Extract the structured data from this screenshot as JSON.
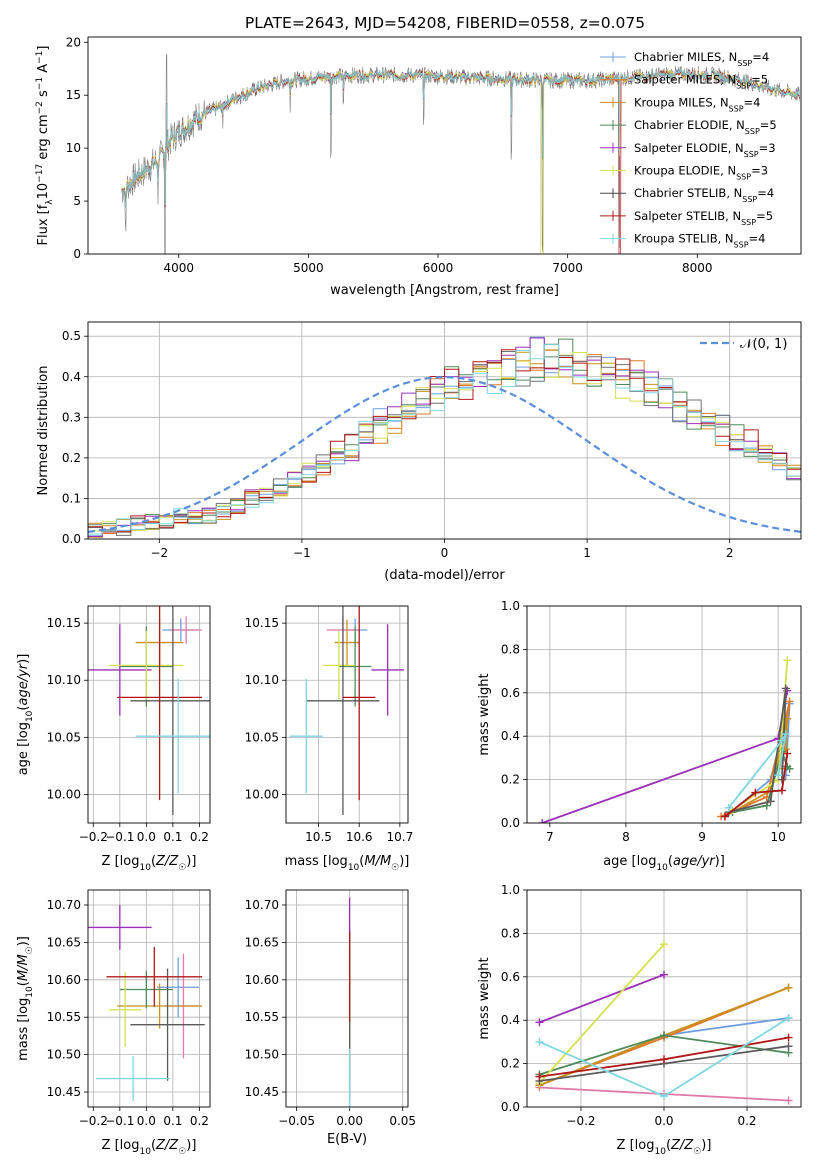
{
  "series_names": [
    "Chabrier MILES",
    "Salpeter MILES",
    "Kroupa MILES",
    "Chabrier ELODIE",
    "Salpeter ELODIE",
    "Kroupa ELODIE",
    "Chabrier STELIB",
    "Salpeter STELIB",
    "Kroupa STELIB"
  ],
  "colors": [
    "#6f9fe0",
    "#e07a2a",
    "#c8901c",
    "#4f8a5c",
    "#9b30b8",
    "#d4e050",
    "#4a4a4a",
    "#b01818",
    "#7fd6e0"
  ],
  "chart_data": [
    {
      "id": "spectrum",
      "type": "line",
      "title": "PLATE=2643, MJD=54208, FIBERID=0558, z=0.075",
      "xlabel": "wavelength [Angstrom, rest frame]",
      "ylabel": "Flux [f_λ 10^-17 erg cm^-2 s^-1 A^-1]",
      "xlim": [
        3300,
        8800
      ],
      "ylim": [
        0,
        20.5
      ],
      "xticks": [
        4000,
        5000,
        6000,
        7000,
        8000
      ],
      "yticks": [
        0,
        5,
        10,
        15,
        20
      ],
      "grid": false,
      "legend_location": "top-right",
      "legend": [
        {
          "label": "Chabrier MILES, N",
          "sub": "SSP",
          "suffix": "=4"
        },
        {
          "label": "Salpeter MILES, N",
          "sub": "SSP",
          "suffix": "=5"
        },
        {
          "label": "Kroupa MILES, N",
          "sub": "SSP",
          "suffix": "=4"
        },
        {
          "label": "Chabrier ELODIE, N",
          "sub": "SSP",
          "suffix": "=5"
        },
        {
          "label": "Salpeter ELODIE, N",
          "sub": "SSP",
          "suffix": "=3"
        },
        {
          "label": "Kroupa ELODIE, N",
          "sub": "SSP",
          "suffix": "=3"
        },
        {
          "label": "Chabrier STELIB, N",
          "sub": "SSP",
          "suffix": "=4"
        },
        {
          "label": "Salpeter STELIB, N",
          "sub": "SSP",
          "suffix": "=5"
        },
        {
          "label": "Kroupa STELIB, N",
          "sub": "SSP",
          "suffix": "=4"
        }
      ],
      "continuum": [
        [
          3560,
          6
        ],
        [
          3650,
          7
        ],
        [
          3750,
          8
        ],
        [
          3850,
          9
        ],
        [
          3950,
          11
        ],
        [
          4050,
          12
        ],
        [
          4150,
          13
        ],
        [
          4300,
          13.8
        ],
        [
          4450,
          14.8
        ],
        [
          4600,
          15.6
        ],
        [
          4800,
          16.3
        ],
        [
          5000,
          16.6
        ],
        [
          5200,
          16.8
        ],
        [
          5400,
          16.9
        ],
        [
          5600,
          16.9
        ],
        [
          5800,
          16.9
        ],
        [
          6000,
          16.8
        ],
        [
          6200,
          16.7
        ],
        [
          6400,
          16.6
        ],
        [
          6600,
          16.5
        ],
        [
          6800,
          16.4
        ],
        [
          7000,
          16.4
        ],
        [
          7200,
          16.4
        ],
        [
          7400,
          16.6
        ],
        [
          7600,
          16.8
        ],
        [
          7800,
          17
        ],
        [
          8000,
          17
        ],
        [
          8200,
          16.8
        ],
        [
          8400,
          16.2
        ],
        [
          8600,
          15.5
        ],
        [
          8800,
          15
        ]
      ],
      "spikes": [
        [
          3590,
          -4.5
        ],
        [
          3840,
          -5
        ],
        [
          3895,
          -11
        ],
        [
          3905,
          8
        ],
        [
          5175,
          -7
        ],
        [
          5890,
          -4
        ],
        [
          6565,
          -7
        ],
        [
          6805,
          -16
        ],
        [
          7400,
          -16
        ],
        [
          4340,
          -3
        ],
        [
          4860,
          -3
        ],
        [
          5270,
          -3
        ]
      ]
    },
    {
      "id": "residuals",
      "type": "histogram",
      "xlabel": "(data-model)/error",
      "ylabel": "Normed distribution",
      "xlim": [
        -2.5,
        2.5
      ],
      "ylim": [
        0,
        0.535
      ],
      "xticks": [
        -2,
        -1,
        0,
        1,
        2
      ],
      "yticks": [
        0.0,
        0.1,
        0.2,
        0.3,
        0.4,
        0.5
      ],
      "grid": true,
      "legend_location": "top-right",
      "legend": [
        {
          "label": "𝒩(0, 1)",
          "style": "dashed"
        }
      ],
      "bin_width": 0.1,
      "bin_start": -2.5,
      "shape_values": [
        0.02,
        0.025,
        0.03,
        0.035,
        0.04,
        0.045,
        0.05,
        0.055,
        0.06,
        0.07,
        0.08,
        0.095,
        0.11,
        0.13,
        0.15,
        0.17,
        0.19,
        0.21,
        0.23,
        0.26,
        0.28,
        0.3,
        0.32,
        0.34,
        0.36,
        0.375,
        0.39,
        0.4,
        0.41,
        0.42,
        0.43,
        0.44,
        0.44,
        0.44,
        0.43,
        0.42,
        0.41,
        0.4,
        0.39,
        0.37,
        0.35,
        0.33,
        0.31,
        0.29,
        0.27,
        0.25,
        0.23,
        0.21,
        0.19,
        0.17
      ],
      "normal_curve": {
        "mean": 0,
        "sigma": 1
      }
    },
    {
      "id": "age-vs-Z",
      "type": "scatter",
      "xlabel": "Z [log10(Z/Z☉)]",
      "ylabel": "age  [log10(age/yr)]",
      "xlim": [
        -0.22,
        0.24
      ],
      "ylim": [
        9.975,
        10.165
      ],
      "xticks": [
        -0.2,
        -0.1,
        0.0,
        0.1,
        0.2
      ],
      "yticks": [
        10.0,
        10.05,
        10.1,
        10.15
      ],
      "grid": true,
      "points": [
        {
          "x": 0.13,
          "xerr": 0.07,
          "y": 10.144,
          "yerr": 0.01
        },
        {
          "x": 0.15,
          "xerr": 0.06,
          "y": 10.144,
          "yerr": 0.012
        },
        {
          "x": 0.05,
          "xerr": 0.09,
          "y": 10.133,
          "yerr": 0.02
        },
        {
          "x": 0.0,
          "xerr": 0.1,
          "y": 10.112,
          "yerr": 0.035
        },
        {
          "x": -0.1,
          "xerr": 0.12,
          "y": 10.109,
          "yerr": 0.04
        },
        {
          "x": 0.0,
          "xerr": 0.14,
          "y": 10.113,
          "yerr": 0.03
        },
        {
          "x": 0.1,
          "xerr": 0.16,
          "y": 10.082,
          "yerr": 0.1
        },
        {
          "x": 0.05,
          "xerr": 0.16,
          "y": 10.085,
          "yerr": 0.09
        },
        {
          "x": 0.12,
          "xerr": 0.16,
          "y": 10.051,
          "yerr": 0.05
        }
      ]
    },
    {
      "id": "age-vs-mass",
      "type": "scatter",
      "xlabel": "mass [log10(M/M☉)]",
      "ylabel": "",
      "xlim": [
        10.42,
        10.72
      ],
      "ylim": [
        9.975,
        10.165
      ],
      "xticks": [
        10.5,
        10.6,
        10.7
      ],
      "yticks": [
        10.0,
        10.05,
        10.1,
        10.15
      ],
      "grid": true,
      "points": [
        {
          "x": 10.59,
          "xerr": 0.03,
          "y": 10.144,
          "yerr": 0.01
        },
        {
          "x": 10.56,
          "xerr": 0.04,
          "y": 10.144,
          "yerr": 0.012
        },
        {
          "x": 10.57,
          "xerr": 0.03,
          "y": 10.133,
          "yerr": 0.02
        },
        {
          "x": 10.59,
          "xerr": 0.04,
          "y": 10.112,
          "yerr": 0.035
        },
        {
          "x": 10.67,
          "xerr": 0.04,
          "y": 10.109,
          "yerr": 0.04
        },
        {
          "x": 10.55,
          "xerr": 0.04,
          "y": 10.113,
          "yerr": 0.03
        },
        {
          "x": 10.56,
          "xerr": 0.09,
          "y": 10.082,
          "yerr": 0.1
        },
        {
          "x": 10.6,
          "xerr": 0.04,
          "y": 10.085,
          "yerr": 0.09
        },
        {
          "x": 10.47,
          "xerr": 0.04,
          "y": 10.051,
          "yerr": 0.05
        }
      ]
    },
    {
      "id": "weight-vs-age",
      "type": "line",
      "xlabel": "age  [log10(age/yr)]",
      "ylabel": "mass weight",
      "xlim": [
        6.7,
        10.3
      ],
      "ylim": [
        0,
        1
      ],
      "xticks": [
        7,
        8,
        9,
        10
      ],
      "yticks": [
        0.0,
        0.2,
        0.4,
        0.6,
        0.8,
        1.0
      ],
      "grid": true,
      "series": [
        {
          "points": [
            [
              9.3,
              0.03
            ],
            [
              9.9,
              0.2
            ],
            [
              10.15,
              0.55
            ],
            [
              10.1,
              0.22
            ]
          ]
        },
        {
          "points": [
            [
              9.25,
              0.03
            ],
            [
              9.85,
              0.12
            ],
            [
              10.15,
              0.56
            ],
            [
              10.05,
              0.25
            ]
          ]
        },
        {
          "points": [
            [
              9.3,
              0.03
            ],
            [
              9.9,
              0.15
            ],
            [
              10.12,
              0.48
            ],
            [
              10.1,
              0.34
            ]
          ]
        },
        {
          "points": [
            [
              9.4,
              0.05
            ],
            [
              9.85,
              0.08
            ],
            [
              10.05,
              0.33
            ],
            [
              10.12,
              0.26
            ],
            [
              10.15,
              0.25
            ]
          ]
        },
        {
          "points": [
            [
              6.9,
              0.0
            ],
            [
              10.0,
              0.39
            ],
            [
              10.12,
              0.61
            ]
          ]
        },
        {
          "points": [
            [
              9.4,
              0.06
            ],
            [
              10.0,
              0.2
            ],
            [
              10.12,
              0.75
            ]
          ]
        },
        {
          "points": [
            [
              9.35,
              0.05
            ],
            [
              9.9,
              0.1
            ],
            [
              10.1,
              0.62
            ],
            [
              10.05,
              0.2
            ]
          ]
        },
        {
          "points": [
            [
              9.3,
              0.03
            ],
            [
              9.7,
              0.14
            ],
            [
              10.05,
              0.15
            ],
            [
              10.12,
              0.32
            ]
          ]
        },
        {
          "points": [
            [
              9.35,
              0.07
            ],
            [
              10.05,
              0.38
            ],
            [
              10.1,
              0.41
            ],
            [
              10.0,
              0.22
            ]
          ]
        }
      ]
    },
    {
      "id": "mass-vs-Z",
      "type": "scatter",
      "xlabel": "Z [log10(Z/Z☉)]",
      "ylabel": "mass [log10(M/M☉)]",
      "xlim": [
        -0.22,
        0.24
      ],
      "ylim": [
        10.43,
        10.72
      ],
      "xticks": [
        -0.2,
        -0.1,
        0.0,
        0.1,
        0.2
      ],
      "yticks": [
        10.45,
        10.5,
        10.55,
        10.6,
        10.65,
        10.7
      ],
      "grid": true,
      "points": [
        {
          "x": 0.12,
          "xerr": 0.08,
          "y": 10.59,
          "yerr": 0.04
        },
        {
          "x": 0.14,
          "xerr": 0.07,
          "y": 10.565,
          "yerr": 0.07
        },
        {
          "x": 0.05,
          "xerr": 0.16,
          "y": 10.565,
          "yerr": 0.03
        },
        {
          "x": 0.0,
          "xerr": 0.1,
          "y": 10.587,
          "yerr": 0.025
        },
        {
          "x": -0.1,
          "xerr": 0.12,
          "y": 10.67,
          "yerr": 0.03
        },
        {
          "x": -0.08,
          "xerr": 0.06,
          "y": 10.56,
          "yerr": 0.05
        },
        {
          "x": 0.08,
          "xerr": 0.14,
          "y": 10.54,
          "yerr": 0.075
        },
        {
          "x": 0.03,
          "xerr": 0.18,
          "y": 10.604,
          "yerr": 0.04
        },
        {
          "x": -0.05,
          "xerr": 0.14,
          "y": 10.468,
          "yerr": 0.03
        }
      ]
    },
    {
      "id": "mass-vs-EBV",
      "type": "scatter",
      "xlabel": "E(B-V)",
      "ylabel": "",
      "xlim": [
        -0.06,
        0.055
      ],
      "ylim": [
        10.43,
        10.72
      ],
      "xticks": [
        -0.05,
        0.0,
        0.05
      ],
      "yticks": [
        10.45,
        10.5,
        10.55,
        10.6,
        10.65,
        10.7
      ],
      "grid": true,
      "points": [
        {
          "x": 0.0,
          "xerr": 0.0,
          "y": 10.59,
          "yerr": 0.08
        },
        {
          "x": 0.0,
          "xerr": 0.0,
          "y": 10.565,
          "yerr": 0.1
        },
        {
          "x": 0.0,
          "xerr": 0.0,
          "y": 10.565,
          "yerr": 0.08
        },
        {
          "x": 0.0,
          "xerr": 0.0,
          "y": 10.587,
          "yerr": 0.08
        },
        {
          "x": 0.0,
          "xerr": 0.0,
          "y": 10.67,
          "yerr": 0.04
        },
        {
          "x": 0.0,
          "xerr": 0.0,
          "y": 10.56,
          "yerr": 0.09
        },
        {
          "x": 0.0,
          "xerr": 0.0,
          "y": 10.54,
          "yerr": 0.1
        },
        {
          "x": 0.0,
          "xerr": 0.0,
          "y": 10.604,
          "yerr": 0.06
        },
        {
          "x": 0.0,
          "xerr": 0.0,
          "y": 10.468,
          "yerr": 0.04
        }
      ]
    },
    {
      "id": "weight-vs-Z",
      "type": "line",
      "xlabel": "Z [log10(Z/Z☉)]",
      "ylabel": "mass weight",
      "xlim": [
        -0.33,
        0.33
      ],
      "ylim": [
        0,
        1
      ],
      "xticks": [
        -0.2,
        0.0,
        0.2
      ],
      "yticks": [
        0.0,
        0.2,
        0.4,
        0.6,
        0.8,
        1.0
      ],
      "grid": true,
      "series": [
        {
          "points": [
            [
              -0.3,
              0.1
            ],
            [
              0.0,
              0.33
            ],
            [
              0.3,
              0.41
            ]
          ]
        },
        {
          "points": [
            [
              -0.3,
              0.1
            ],
            [
              0.0,
              0.32
            ],
            [
              0.3,
              0.55
            ]
          ]
        },
        {
          "points": [
            [
              -0.3,
              0.1
            ],
            [
              0.0,
              0.33
            ],
            [
              0.3,
              0.55
            ]
          ]
        },
        {
          "points": [
            [
              -0.3,
              0.15
            ],
            [
              0.0,
              0.33
            ],
            [
              0.3,
              0.25
            ]
          ]
        },
        {
          "points": [
            [
              -0.3,
              0.39
            ],
            [
              0.0,
              0.61
            ]
          ]
        },
        {
          "points": [
            [
              -0.3,
              0.11
            ],
            [
              0.0,
              0.75
            ]
          ]
        },
        {
          "points": [
            [
              -0.3,
              0.12
            ],
            [
              0.0,
              0.2
            ],
            [
              0.3,
              0.28
            ]
          ]
        },
        {
          "points": [
            [
              -0.3,
              0.14
            ],
            [
              0.0,
              0.22
            ],
            [
              0.3,
              0.32
            ]
          ]
        },
        {
          "points": [
            [
              -0.3,
              0.3
            ],
            [
              0.0,
              0.05
            ],
            [
              0.3,
              0.41
            ]
          ]
        }
      ],
      "extra_line": {
        "color": "#e07aa8",
        "points": [
          [
            -0.3,
            0.09
          ],
          [
            0.0,
            0.06
          ],
          [
            0.3,
            0.03
          ]
        ]
      }
    }
  ]
}
